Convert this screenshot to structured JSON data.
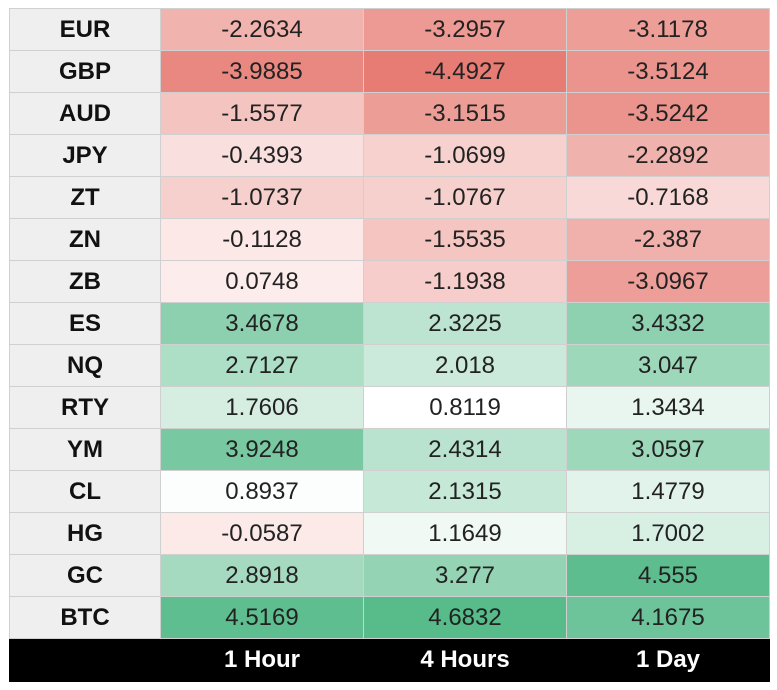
{
  "chart_data": {
    "type": "heatmap",
    "columns": [
      "1 Hour",
      "4 Hours",
      "1 Day"
    ],
    "rows": [
      {
        "label": "EUR",
        "values": [
          "-2.2634",
          "-3.2957",
          "-3.1178"
        ]
      },
      {
        "label": "GBP",
        "values": [
          "-3.9885",
          "-4.4927",
          "-3.5124"
        ]
      },
      {
        "label": "AUD",
        "values": [
          "-1.5577",
          "-3.1515",
          "-3.5242"
        ]
      },
      {
        "label": "JPY",
        "values": [
          "-0.4393",
          "-1.0699",
          "-2.2892"
        ]
      },
      {
        "label": "ZT",
        "values": [
          "-1.0737",
          "-1.0767",
          "-0.7168"
        ]
      },
      {
        "label": "ZN",
        "values": [
          "-0.1128",
          "-1.5535",
          "-2.387"
        ]
      },
      {
        "label": "ZB",
        "values": [
          "0.0748",
          "-1.1938",
          "-3.0967"
        ]
      },
      {
        "label": "ES",
        "values": [
          "3.4678",
          "2.3225",
          "3.4332"
        ]
      },
      {
        "label": "NQ",
        "values": [
          "2.7127",
          "2.018",
          "3.047"
        ]
      },
      {
        "label": "RTY",
        "values": [
          "1.7606",
          "0.8119",
          "1.3434"
        ]
      },
      {
        "label": "YM",
        "values": [
          "3.9248",
          "2.4314",
          "3.0597"
        ]
      },
      {
        "label": "CL",
        "values": [
          "0.8937",
          "2.1315",
          "1.4779"
        ]
      },
      {
        "label": "HG",
        "values": [
          "-0.0587",
          "1.1649",
          "1.7002"
        ]
      },
      {
        "label": "GC",
        "values": [
          "2.8918",
          "3.277",
          "4.555"
        ]
      },
      {
        "label": "BTC",
        "values": [
          "4.5169",
          "4.6832",
          "4.1675"
        ]
      }
    ],
    "color_scale": {
      "negative": "#e67c73",
      "neutral": "#ffffff",
      "positive": "#57bb8a",
      "neg_extreme": -4.4927,
      "neutral_point": 0.8119,
      "pos_extreme": 4.6832
    }
  }
}
